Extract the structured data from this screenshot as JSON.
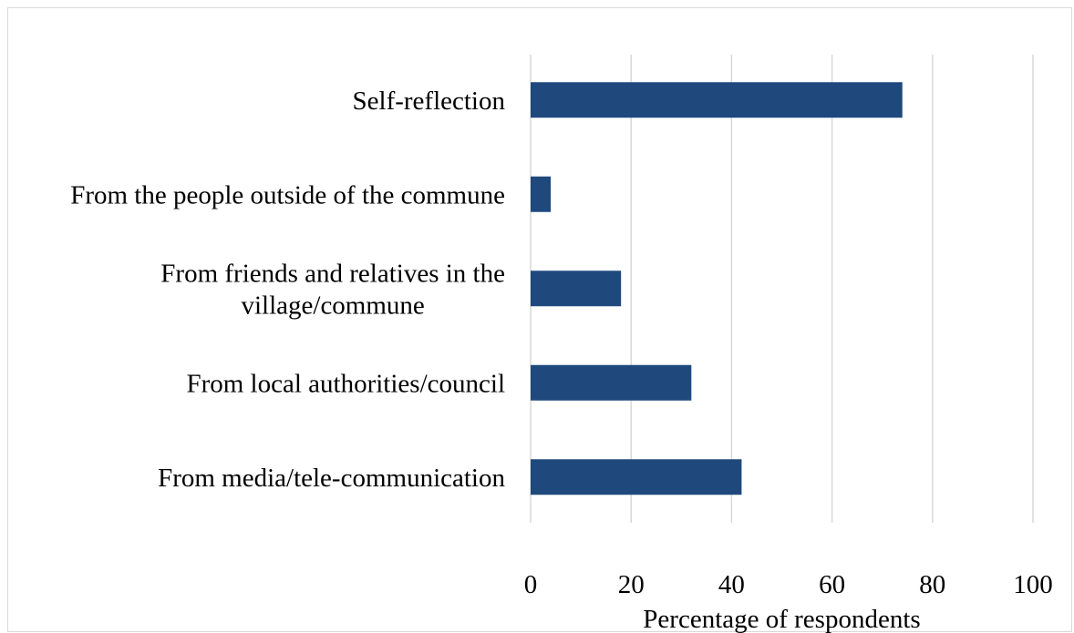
{
  "chart_data": {
    "type": "bar",
    "orientation": "horizontal",
    "categories": [
      "Self-reflection",
      "From the people outside of the commune",
      "From friends and relatives in the village/commune",
      "From local authorities/council",
      "From media/tele-communication"
    ],
    "category_lines": [
      [
        "Self-reflection"
      ],
      [
        "From the people outside of the commune"
      ],
      [
        "From friends and relatives in the",
        "village/commune"
      ],
      [
        "From local authorities/council"
      ],
      [
        "From media/tele-communication"
      ]
    ],
    "values": [
      74,
      4,
      18,
      32,
      42
    ],
    "xlabel": "Percentage of respondents",
    "ylabel": "",
    "title": "",
    "xlim": [
      0,
      100
    ],
    "xticks": [
      0,
      20,
      40,
      60,
      80,
      100
    ],
    "grid": "vertical",
    "legend": "none",
    "bar_color": "#1f497d",
    "grid_color": "#d9d9d9"
  }
}
